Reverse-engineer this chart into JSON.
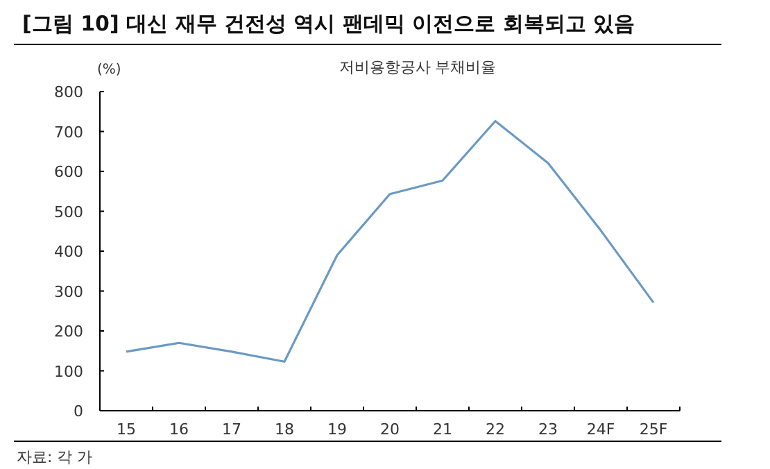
{
  "chart_data": {
    "type": "line",
    "title": "[그림 10] 대신 재무 건전성 역시 팬데믹 이전으로 회복되고 있음",
    "ylabel": "(%)",
    "categories": [
      "15",
      "16",
      "17",
      "18",
      "19",
      "20",
      "21",
      "22",
      "23",
      "24F",
      "25F"
    ],
    "series": [
      {
        "name": "저비용항공사 부채비율",
        "color": "#6a9ac4",
        "values": [
          148,
          170,
          148,
          123,
          390,
          543,
          577,
          726,
          621,
          452,
          271
        ]
      }
    ],
    "ylim": [
      0,
      800
    ],
    "yticks": [
      0,
      100,
      200,
      300,
      400,
      500,
      600,
      700,
      800
    ],
    "grid": false,
    "legend": "top",
    "marker": "none",
    "line_style": "solid",
    "annotations": [
      "자료: 각 가"
    ]
  }
}
